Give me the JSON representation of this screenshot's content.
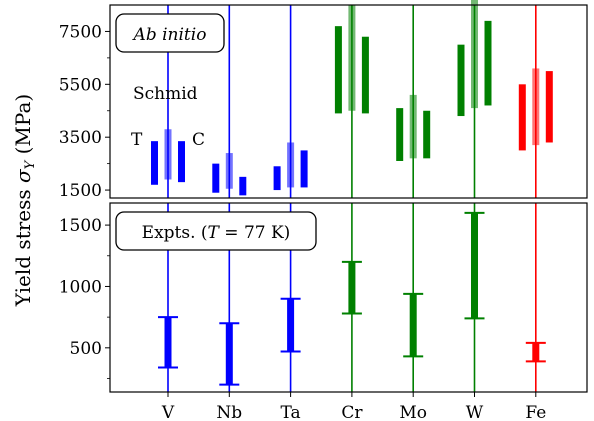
{
  "chart_data": [
    {
      "panel": "ab-initio",
      "type": "bar",
      "box_label": "Ab initio",
      "annotations": {
        "schmid": "Schmid",
        "t": "T",
        "c": "C"
      },
      "ylim": [
        1200,
        8500
      ],
      "yticks": [
        1500,
        3500,
        5500,
        7500
      ],
      "categories": [
        "V",
        "Nb",
        "Ta",
        "Cr",
        "Mo",
        "W",
        "Fe"
      ],
      "colors": [
        "#0000ff",
        "#0000ff",
        "#0000ff",
        "#008000",
        "#008000",
        "#008000",
        "#ff0000"
      ],
      "ranges": {
        "T": [
          [
            1700,
            3350
          ],
          [
            1400,
            2500
          ],
          [
            1500,
            2400
          ],
          [
            4400,
            7700
          ],
          [
            2600,
            4600
          ],
          [
            4300,
            7000
          ],
          [
            3000,
            5500
          ]
        ],
        "Schmid": [
          [
            1900,
            3800
          ],
          [
            1550,
            2900
          ],
          [
            1600,
            3300
          ],
          [
            4500,
            8500
          ],
          [
            2700,
            5100
          ],
          [
            4600,
            8700
          ],
          [
            3200,
            6100
          ]
        ],
        "C": [
          [
            1800,
            3350
          ],
          [
            1300,
            2000
          ],
          [
            1600,
            3000
          ],
          [
            4400,
            7300
          ],
          [
            2700,
            4500
          ],
          [
            4700,
            7900
          ],
          [
            3300,
            6000
          ]
        ]
      }
    },
    {
      "panel": "experiments",
      "type": "bar",
      "box_label": "Expts. (T = 77 K)",
      "ylim": [
        140,
        1680
      ],
      "yticks": [
        500,
        1000,
        1500
      ],
      "categories": [
        "V",
        "Nb",
        "Ta",
        "Cr",
        "Mo",
        "W",
        "Fe"
      ],
      "colors": [
        "#0000ff",
        "#0000ff",
        "#0000ff",
        "#008000",
        "#008000",
        "#008000",
        "#ff0000"
      ],
      "ranges": [
        [
          340,
          750
        ],
        [
          200,
          700
        ],
        [
          470,
          900
        ],
        [
          780,
          1200
        ],
        [
          430,
          940
        ],
        [
          740,
          1600
        ],
        [
          390,
          540
        ]
      ]
    }
  ],
  "ylabel": "Yield stress σY (MPa)"
}
